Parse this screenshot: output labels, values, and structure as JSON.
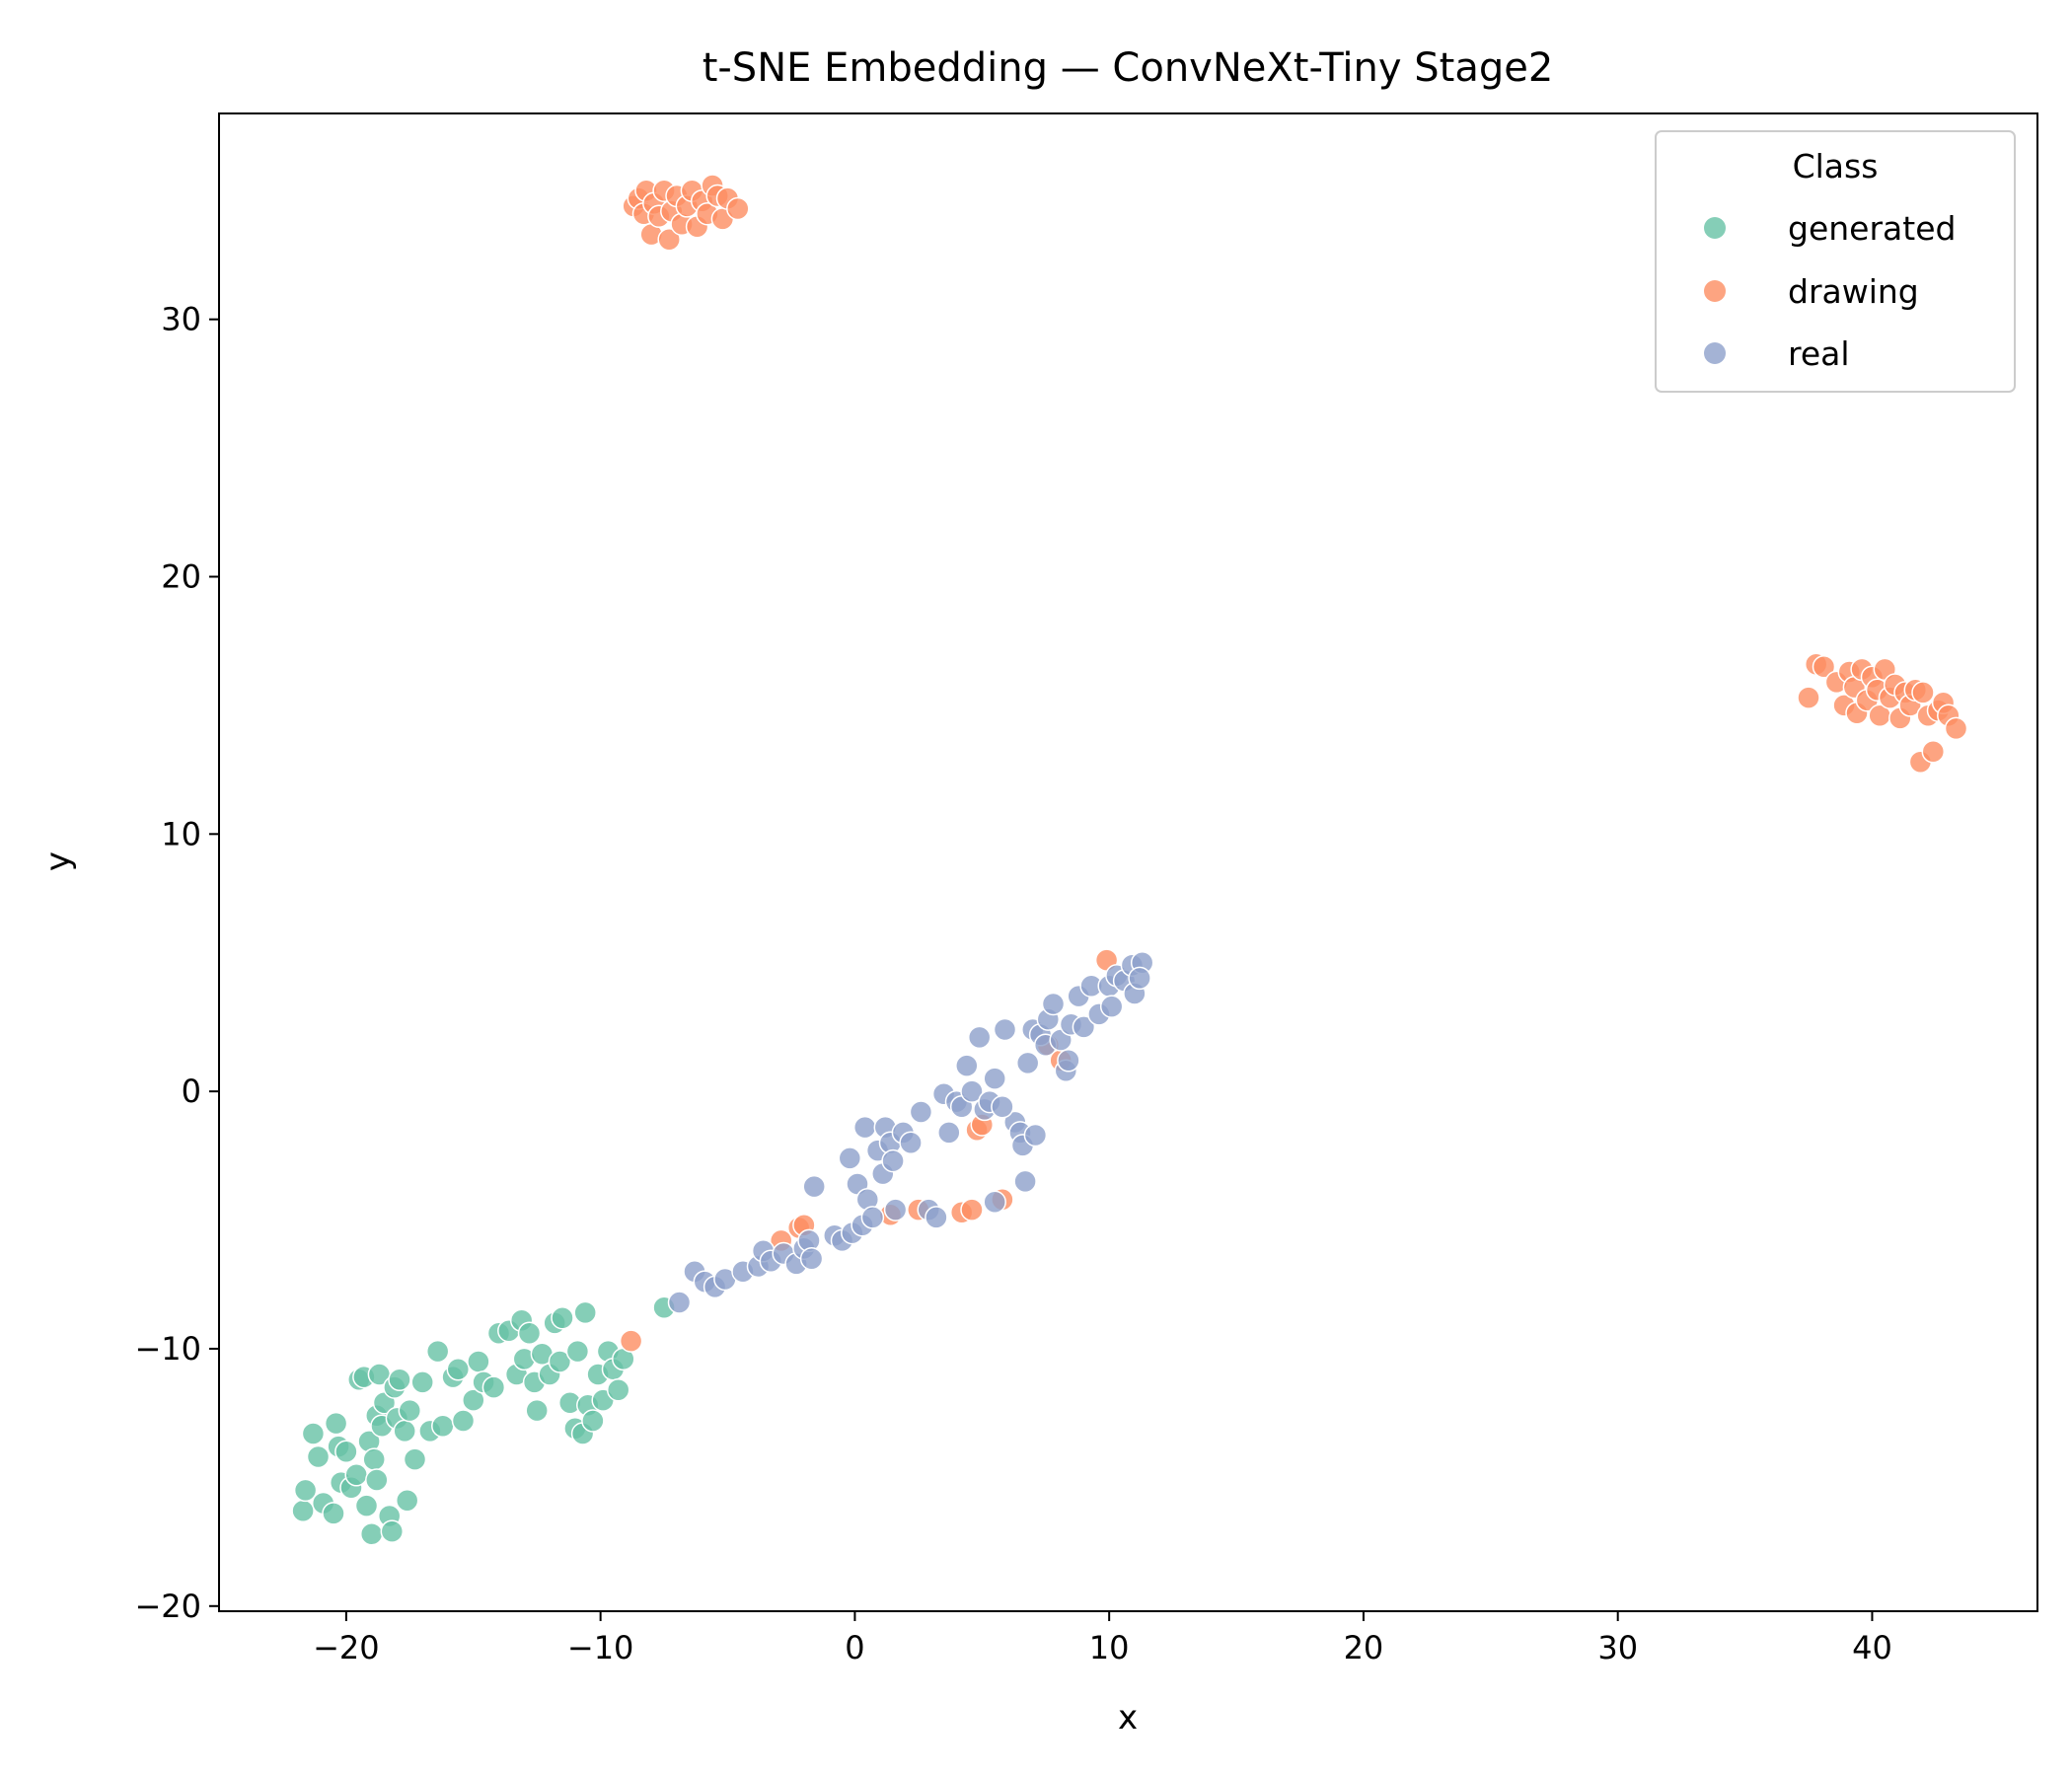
{
  "chart_data": {
    "type": "scatter",
    "title": "t-SNE Embedding — ConvNeXt-Tiny Stage2",
    "xlabel": "x",
    "ylabel": "y",
    "xlim": [
      -25,
      46.5
    ],
    "ylim": [
      -20.2,
      38
    ],
    "xticks": [
      -20,
      -10,
      0,
      10,
      20,
      30,
      40
    ],
    "yticks": [
      -20,
      -10,
      0,
      10,
      20,
      30
    ],
    "xtick_labels": [
      "−20",
      "−10",
      "0",
      "10",
      "20",
      "30",
      "40"
    ],
    "ytick_labels": [
      "−20",
      "−10",
      "0",
      "10",
      "20",
      "30"
    ],
    "grid": false,
    "legend": {
      "title": "Class",
      "position": "top-right"
    },
    "series": [
      {
        "name": "generated",
        "color": "#66c2a5",
        "points": [
          [
            -21.7,
            -16.3
          ],
          [
            -21.6,
            -15.5
          ],
          [
            -21.3,
            -13.3
          ],
          [
            -21.1,
            -14.2
          ],
          [
            -20.9,
            -16.0
          ],
          [
            -20.5,
            -16.4
          ],
          [
            -20.4,
            -12.9
          ],
          [
            -20.3,
            -13.8
          ],
          [
            -20.2,
            -15.2
          ],
          [
            -20.0,
            -14.0
          ],
          [
            -19.8,
            -15.4
          ],
          [
            -19.6,
            -14.9
          ],
          [
            -19.5,
            -11.2
          ],
          [
            -19.3,
            -11.1
          ],
          [
            -19.2,
            -16.1
          ],
          [
            -19.1,
            -13.6
          ],
          [
            -19.0,
            -17.2
          ],
          [
            -18.9,
            -14.3
          ],
          [
            -18.8,
            -15.1
          ],
          [
            -18.8,
            -12.6
          ],
          [
            -18.7,
            -11.0
          ],
          [
            -18.6,
            -13.0
          ],
          [
            -18.5,
            -12.1
          ],
          [
            -18.3,
            -16.5
          ],
          [
            -18.2,
            -17.1
          ],
          [
            -18.1,
            -11.5
          ],
          [
            -18.0,
            -12.7
          ],
          [
            -17.9,
            -11.2
          ],
          [
            -17.7,
            -13.2
          ],
          [
            -17.6,
            -15.9
          ],
          [
            -17.5,
            -12.4
          ],
          [
            -17.3,
            -14.3
          ],
          [
            -17.0,
            -11.3
          ],
          [
            -16.7,
            -13.2
          ],
          [
            -16.4,
            -10.1
          ],
          [
            -16.2,
            -13.0
          ],
          [
            -15.8,
            -11.1
          ],
          [
            -15.6,
            -10.8
          ],
          [
            -15.4,
            -12.8
          ],
          [
            -15.0,
            -12.0
          ],
          [
            -14.8,
            -10.5
          ],
          [
            -14.6,
            -11.3
          ],
          [
            -14.2,
            -11.5
          ],
          [
            -14.0,
            -9.4
          ],
          [
            -13.6,
            -9.3
          ],
          [
            -13.3,
            -11.0
          ],
          [
            -13.1,
            -8.9
          ],
          [
            -13.0,
            -10.4
          ],
          [
            -12.8,
            -9.4
          ],
          [
            -12.6,
            -11.3
          ],
          [
            -12.5,
            -12.4
          ],
          [
            -12.3,
            -10.2
          ],
          [
            -12.0,
            -11.0
          ],
          [
            -11.8,
            -9.0
          ],
          [
            -11.6,
            -10.5
          ],
          [
            -11.5,
            -8.8
          ],
          [
            -11.2,
            -12.1
          ],
          [
            -11.0,
            -13.1
          ],
          [
            -10.9,
            -10.1
          ],
          [
            -10.7,
            -13.3
          ],
          [
            -10.6,
            -8.6
          ],
          [
            -10.5,
            -12.2
          ],
          [
            -10.3,
            -12.8
          ],
          [
            -10.1,
            -11.0
          ],
          [
            -9.9,
            -12.0
          ],
          [
            -9.7,
            -10.1
          ],
          [
            -9.5,
            -10.8
          ],
          [
            -9.3,
            -11.6
          ],
          [
            -9.1,
            -10.4
          ],
          [
            -7.5,
            -8.4
          ]
        ]
      },
      {
        "name": "drawing",
        "color": "#fc8d62",
        "points": [
          [
            -8.7,
            34.4
          ],
          [
            -8.5,
            34.7
          ],
          [
            -8.3,
            34.1
          ],
          [
            -8.2,
            35.0
          ],
          [
            -8.0,
            33.3
          ],
          [
            -7.9,
            34.5
          ],
          [
            -7.7,
            34.0
          ],
          [
            -7.5,
            35.0
          ],
          [
            -7.3,
            33.1
          ],
          [
            -7.2,
            34.2
          ],
          [
            -7.0,
            34.8
          ],
          [
            -6.8,
            33.7
          ],
          [
            -6.6,
            34.4
          ],
          [
            -6.4,
            35.0
          ],
          [
            -6.2,
            33.6
          ],
          [
            -6.0,
            34.6
          ],
          [
            -5.8,
            34.1
          ],
          [
            -5.6,
            35.2
          ],
          [
            -5.4,
            34.8
          ],
          [
            -5.2,
            33.9
          ],
          [
            -5.0,
            34.7
          ],
          [
            -4.6,
            34.3
          ],
          [
            37.5,
            15.3
          ],
          [
            37.8,
            16.6
          ],
          [
            38.1,
            16.5
          ],
          [
            38.6,
            15.9
          ],
          [
            38.9,
            15.0
          ],
          [
            39.1,
            16.3
          ],
          [
            39.3,
            15.7
          ],
          [
            39.4,
            14.7
          ],
          [
            39.6,
            16.4
          ],
          [
            39.8,
            15.2
          ],
          [
            40.0,
            16.1
          ],
          [
            40.2,
            15.6
          ],
          [
            40.3,
            14.6
          ],
          [
            40.5,
            16.4
          ],
          [
            40.7,
            15.3
          ],
          [
            40.9,
            15.8
          ],
          [
            41.1,
            14.5
          ],
          [
            41.3,
            15.5
          ],
          [
            41.5,
            15.0
          ],
          [
            41.7,
            15.6
          ],
          [
            41.9,
            12.8
          ],
          [
            42.0,
            15.5
          ],
          [
            42.2,
            14.6
          ],
          [
            42.4,
            13.2
          ],
          [
            42.6,
            14.8
          ],
          [
            42.8,
            15.1
          ],
          [
            43.0,
            14.6
          ],
          [
            43.3,
            14.1
          ],
          [
            -8.8,
            -9.7
          ],
          [
            -2.9,
            -5.8
          ],
          [
            -2.2,
            -5.3
          ],
          [
            -2.0,
            -5.2
          ],
          [
            1.4,
            -4.8
          ],
          [
            2.5,
            -4.6
          ],
          [
            4.2,
            -4.7
          ],
          [
            4.6,
            -4.6
          ],
          [
            4.8,
            -1.5
          ],
          [
            5.0,
            -1.3
          ],
          [
            5.8,
            -4.2
          ],
          [
            7.6,
            1.8
          ],
          [
            8.1,
            1.2
          ],
          [
            9.9,
            5.1
          ]
        ]
      },
      {
        "name": "real",
        "color": "#8da0cb",
        "points": [
          [
            -6.9,
            -8.2
          ],
          [
            -6.3,
            -7.0
          ],
          [
            -5.9,
            -7.4
          ],
          [
            -5.5,
            -7.6
          ],
          [
            -5.1,
            -7.3
          ],
          [
            -4.4,
            -7.0
          ],
          [
            -3.8,
            -6.8
          ],
          [
            -3.6,
            -6.2
          ],
          [
            -3.3,
            -6.6
          ],
          [
            -2.8,
            -6.3
          ],
          [
            -2.3,
            -6.7
          ],
          [
            -2.0,
            -6.1
          ],
          [
            -1.8,
            -5.8
          ],
          [
            -1.7,
            -6.5
          ],
          [
            -1.6,
            -3.7
          ],
          [
            -0.8,
            -5.6
          ],
          [
            -0.5,
            -5.8
          ],
          [
            -0.2,
            -2.6
          ],
          [
            -0.1,
            -5.5
          ],
          [
            0.1,
            -3.6
          ],
          [
            0.3,
            -5.2
          ],
          [
            0.4,
            -1.4
          ],
          [
            0.5,
            -4.2
          ],
          [
            0.7,
            -4.9
          ],
          [
            0.9,
            -2.3
          ],
          [
            1.1,
            -3.2
          ],
          [
            1.2,
            -1.4
          ],
          [
            1.4,
            -2.0
          ],
          [
            1.5,
            -2.7
          ],
          [
            1.6,
            -4.6
          ],
          [
            1.9,
            -1.6
          ],
          [
            2.2,
            -2.0
          ],
          [
            2.6,
            -0.8
          ],
          [
            2.9,
            -4.6
          ],
          [
            3.2,
            -4.9
          ],
          [
            3.5,
            -0.1
          ],
          [
            3.7,
            -1.6
          ],
          [
            4.0,
            -0.4
          ],
          [
            4.2,
            -0.6
          ],
          [
            4.4,
            1.0
          ],
          [
            4.6,
            0.0
          ],
          [
            4.9,
            2.1
          ],
          [
            5.1,
            -0.7
          ],
          [
            5.3,
            -0.4
          ],
          [
            5.5,
            0.5
          ],
          [
            5.5,
            -4.3
          ],
          [
            5.9,
            2.4
          ],
          [
            6.3,
            -1.2
          ],
          [
            6.5,
            -1.6
          ],
          [
            6.6,
            -2.1
          ],
          [
            6.7,
            -3.5
          ],
          [
            6.8,
            1.1
          ],
          [
            7.0,
            2.4
          ],
          [
            7.1,
            -1.7
          ],
          [
            7.3,
            2.2
          ],
          [
            7.5,
            1.8
          ],
          [
            7.6,
            2.8
          ],
          [
            7.8,
            3.4
          ],
          [
            8.1,
            2.0
          ],
          [
            8.3,
            0.8
          ],
          [
            8.5,
            2.6
          ],
          [
            8.8,
            3.7
          ],
          [
            9.0,
            2.5
          ],
          [
            9.3,
            4.1
          ],
          [
            9.6,
            3.0
          ],
          [
            10.0,
            4.1
          ],
          [
            10.3,
            4.5
          ],
          [
            10.6,
            4.3
          ],
          [
            10.9,
            4.9
          ],
          [
            11.0,
            3.8
          ],
          [
            11.3,
            5.0
          ],
          [
            11.2,
            4.4
          ],
          [
            10.1,
            3.3
          ],
          [
            8.4,
            1.2
          ],
          [
            5.8,
            -0.6
          ]
        ]
      }
    ]
  }
}
